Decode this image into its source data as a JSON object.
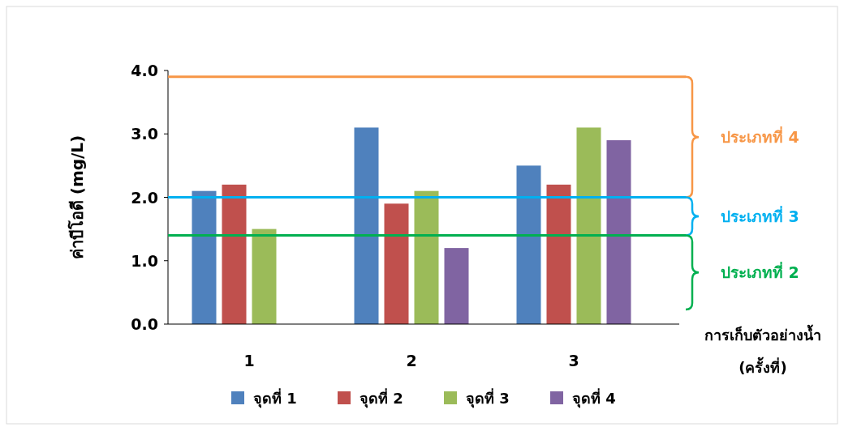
{
  "chart_data": {
    "type": "bar",
    "ylabel": "ค่าบีโอดี (mg/L)",
    "xlabel": "การเก็บตัวอย่างน้ำ (ครั้งที่)",
    "categories": [
      "1",
      "2",
      "3"
    ],
    "series": [
      {
        "name": "จุดที่ 1",
        "color": "#4f81bd",
        "values": [
          2.1,
          3.1,
          2.5
        ]
      },
      {
        "name": "จุดที่ 2",
        "color": "#c0504d",
        "values": [
          2.2,
          1.9,
          2.2
        ]
      },
      {
        "name": "จุดที่ 3",
        "color": "#9bbb59",
        "values": [
          1.5,
          2.1,
          3.1
        ]
      },
      {
        "name": "จุดที่ 4",
        "color": "#8064a2",
        "values": [
          null,
          1.2,
          2.9
        ]
      }
    ],
    "ylim": [
      0,
      4
    ],
    "yticks": [
      {
        "value": 0,
        "label": "0.0"
      },
      {
        "value": 1,
        "label": "1.0"
      },
      {
        "value": 2,
        "label": "2.0"
      },
      {
        "value": 3,
        "label": "3.0"
      },
      {
        "value": 4,
        "label": "4.0"
      }
    ],
    "ref_lines": [
      {
        "axis": "y",
        "value": 3.9,
        "color": "#f79646"
      },
      {
        "axis": "y",
        "value": 2.0,
        "color": "#00b0f0"
      },
      {
        "axis": "y",
        "value": 1.4,
        "color": "#00b050"
      }
    ],
    "annotations": [
      "ประเภทที่ 4",
      "ประเภทที่ 3",
      "ประเภทที่ 2"
    ],
    "grid": false,
    "legend": "bottom"
  }
}
